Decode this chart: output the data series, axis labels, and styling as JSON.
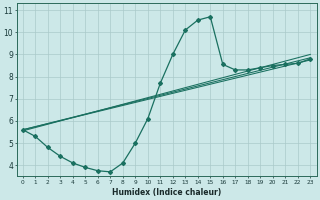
{
  "bg_color": "#cce8e8",
  "line_color": "#1a7060",
  "grid_color": "#aacaca",
  "xlabel": "Humidex (Indice chaleur)",
  "xlim": [
    -0.5,
    23.5
  ],
  "ylim": [
    3.5,
    11.3
  ],
  "xtick_labels": [
    "0",
    "1",
    "2",
    "3",
    "4",
    "5",
    "6",
    "7",
    "8",
    "9",
    "10",
    "11",
    "12",
    "13",
    "14",
    "15",
    "16",
    "17",
    "18",
    "19",
    "20",
    "21",
    "22",
    "23"
  ],
  "ytick_vals": [
    4,
    5,
    6,
    7,
    8,
    9,
    10,
    11
  ],
  "curve1_x": [
    0,
    1,
    2,
    3,
    4,
    5,
    6,
    7,
    8,
    9,
    10,
    11,
    12,
    13,
    14,
    15,
    16,
    17,
    18,
    19,
    20,
    21,
    22,
    23
  ],
  "curve1_y": [
    5.6,
    5.3,
    4.8,
    4.4,
    4.1,
    3.9,
    3.75,
    3.7,
    4.1,
    5.0,
    6.1,
    7.7,
    9.0,
    10.1,
    10.55,
    10.7,
    8.55,
    8.3,
    8.3,
    8.4,
    8.5,
    8.55,
    8.6,
    8.8
  ],
  "line2_x": [
    0,
    23
  ],
  "line2_y": [
    5.6,
    8.75
  ],
  "line3_x": [
    0,
    23
  ],
  "line3_y": [
    5.6,
    8.85
  ],
  "line4_x": [
    0,
    23
  ],
  "line4_y": [
    5.55,
    9.0
  ],
  "marker": "D",
  "markersize": 2.0,
  "linewidth": 0.9
}
